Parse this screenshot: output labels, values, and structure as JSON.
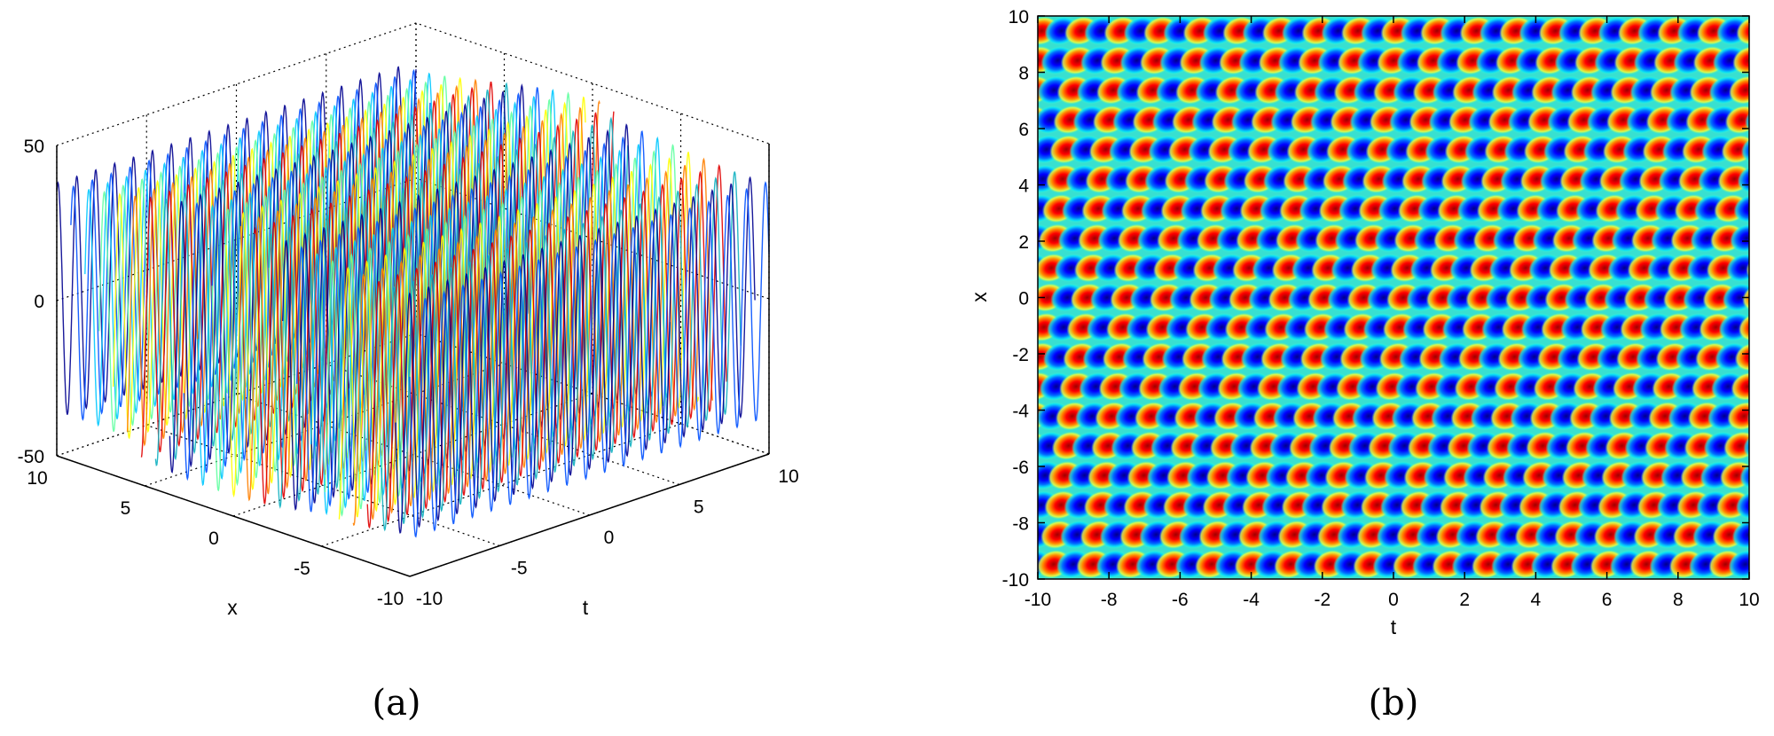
{
  "chart_data": [
    {
      "id": "a",
      "type": "surface-mesh-3d",
      "caption": "(a)",
      "xlabel": "x",
      "ylabel": "t",
      "zlabel": "",
      "x_range": [
        -10,
        10
      ],
      "t_range": [
        -10,
        10
      ],
      "z_range": [
        -50,
        50
      ],
      "x_ticks": [
        "10",
        "5",
        "0",
        "-5",
        "-10"
      ],
      "t_ticks": [
        "-10",
        "-5",
        "0",
        "5",
        "10"
      ],
      "z_ticks": [
        "50",
        "0",
        "-50"
      ],
      "grid": true,
      "colormap": "jet",
      "mesh_colors": [
        "#00008f",
        "#0050ff",
        "#00c8ff",
        "#5fffa0",
        "#ffff00",
        "#ff8000",
        "#e00000",
        "#10b0c0"
      ],
      "amplitude": 45,
      "peaks_along_t": 19
    },
    {
      "id": "b",
      "type": "heatmap",
      "caption": "(b)",
      "xlabel": "t",
      "ylabel": "x",
      "xlim": [
        -10,
        10
      ],
      "ylim": [
        -10,
        10
      ],
      "x_ticks": [
        "-10",
        "-8",
        "-6",
        "-4",
        "-2",
        "0",
        "2",
        "4",
        "6",
        "8",
        "10"
      ],
      "y_ticks": [
        "10",
        "8",
        "6",
        "4",
        "2",
        "0",
        "-2",
        "-4",
        "-6",
        "-8",
        "-10"
      ],
      "colormap": "jet",
      "colormap_stops": [
        "#00008f",
        "#0000ff",
        "#00ffff",
        "#ffff00",
        "#ff0000",
        "#800000"
      ],
      "columns_of_blobs": 18,
      "rows_of_blobs": 19,
      "pattern_slope": 0.83
    }
  ]
}
